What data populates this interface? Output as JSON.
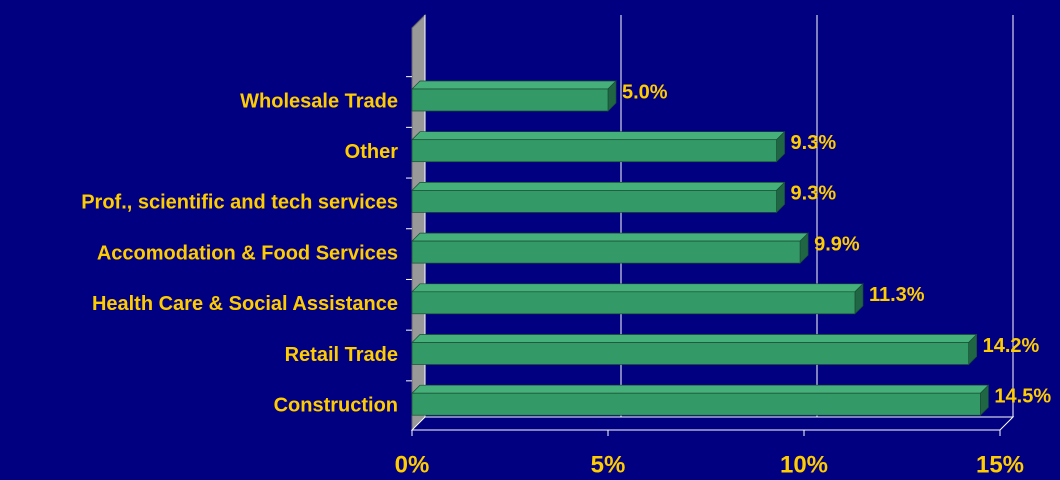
{
  "chart_data": {
    "type": "bar",
    "orientation": "horizontal",
    "three_d": true,
    "categories": [
      "Wholesale Trade",
      "Other",
      "Prof., scientific and tech services",
      "Accomodation & Food Services",
      "Health Care & Social Assistance",
      "Retail Trade",
      "Construction"
    ],
    "values": [
      5.0,
      9.3,
      9.3,
      9.9,
      11.3,
      14.2,
      14.5
    ],
    "value_labels": [
      "5.0%",
      "9.3%",
      "9.3%",
      "9.9%",
      "11.3%",
      "14.2%",
      "14.5%"
    ],
    "color": "#339966",
    "xlim": [
      0,
      15
    ],
    "xticks": [
      {
        "value": 0,
        "label": "0%"
      },
      {
        "value": 5,
        "label": "5%"
      },
      {
        "value": 10,
        "label": "10%"
      },
      {
        "value": 15,
        "label": "15%"
      }
    ],
    "grid": true
  }
}
